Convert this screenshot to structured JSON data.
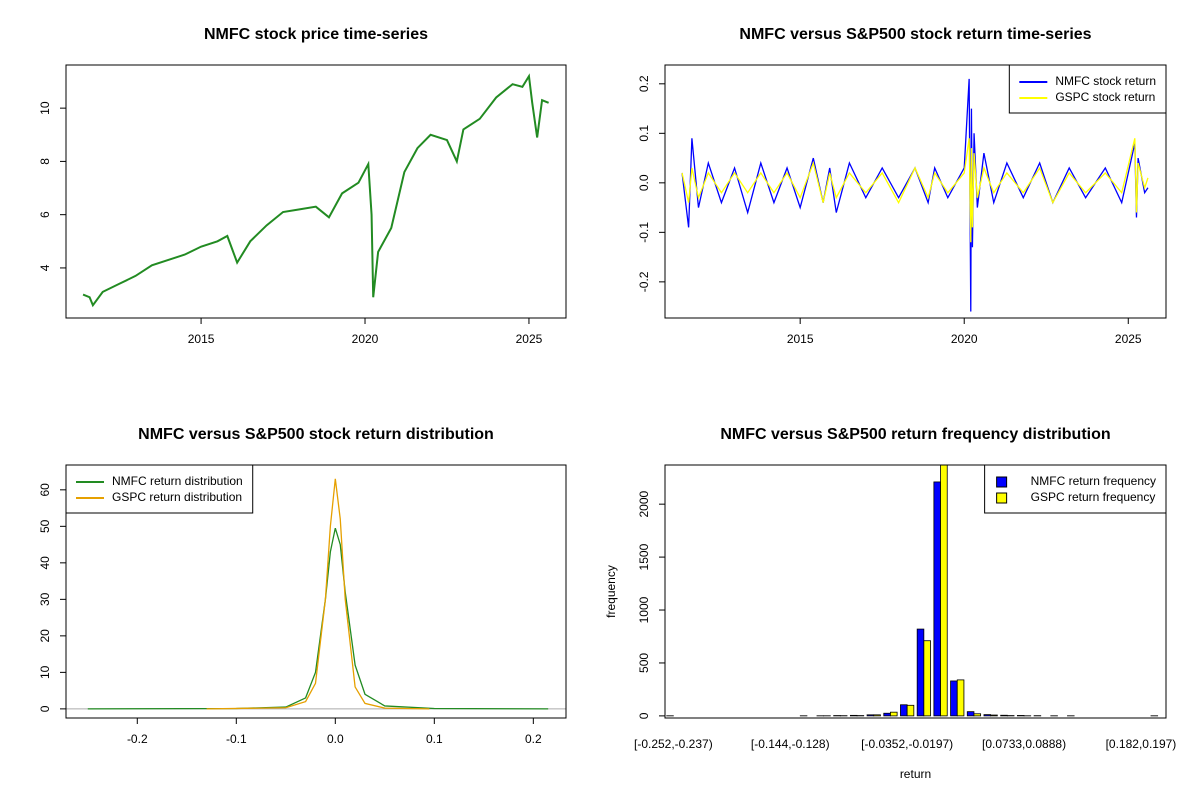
{
  "chart_data": [
    {
      "type": "line",
      "title": "NMFC stock price time-series",
      "color": "#228b22",
      "x": [
        2011.4,
        2011.6,
        2011.7,
        2012.0,
        2012.5,
        2013.0,
        2013.5,
        2014.0,
        2014.5,
        2015.0,
        2015.5,
        2015.8,
        2016.1,
        2016.5,
        2017.0,
        2017.5,
        2018.0,
        2018.5,
        2018.9,
        2019.3,
        2019.8,
        2020.1,
        2020.2,
        2020.25,
        2020.4,
        2020.8,
        2021.2,
        2021.6,
        2022.0,
        2022.5,
        2022.8,
        2023.0,
        2023.5,
        2024.0,
        2024.5,
        2024.8,
        2025.0,
        2025.1,
        2025.25,
        2025.4,
        2025.6
      ],
      "values": [
        3.0,
        2.9,
        2.6,
        3.1,
        3.4,
        3.7,
        4.1,
        4.3,
        4.5,
        4.8,
        5.0,
        5.2,
        4.2,
        5.0,
        5.6,
        6.1,
        6.2,
        6.3,
        5.9,
        6.8,
        7.2,
        7.9,
        6.0,
        2.9,
        4.6,
        5.5,
        7.6,
        8.5,
        9.0,
        8.8,
        8.0,
        9.2,
        9.6,
        10.4,
        10.9,
        10.8,
        11.2,
        10.2,
        8.9,
        10.3,
        10.2
      ],
      "xlim": [
        2010.88,
        2026.13
      ],
      "xticks": [
        2015,
        2020,
        2025
      ],
      "ylim": [
        2.12,
        11.62
      ],
      "yticks": [
        4,
        6,
        8,
        10
      ]
    },
    {
      "type": "line",
      "title": "NMFC versus S&P500 stock return time-series",
      "legend": "topright",
      "x": [
        2011.4,
        2011.6,
        2011.7,
        2011.9,
        2012.2,
        2012.6,
        2013.0,
        2013.4,
        2013.8,
        2014.2,
        2014.6,
        2015.0,
        2015.4,
        2015.7,
        2015.9,
        2016.1,
        2016.5,
        2017.0,
        2017.5,
        2018.0,
        2018.5,
        2018.9,
        2019.1,
        2019.5,
        2020.0,
        2020.15,
        2020.2,
        2020.22,
        2020.25,
        2020.3,
        2020.4,
        2020.6,
        2020.9,
        2021.3,
        2021.8,
        2022.3,
        2022.7,
        2023.2,
        2023.7,
        2024.3,
        2024.8,
        2025.2,
        2025.25,
        2025.3,
        2025.5,
        2025.6
      ],
      "series": [
        {
          "name": "NMFC stock return",
          "color": "#0000ff",
          "values": [
            0.02,
            -0.09,
            0.09,
            -0.05,
            0.04,
            -0.04,
            0.03,
            -0.06,
            0.04,
            -0.04,
            0.03,
            -0.05,
            0.05,
            -0.04,
            0.03,
            -0.06,
            0.04,
            -0.03,
            0.03,
            -0.03,
            0.03,
            -0.04,
            0.03,
            -0.03,
            0.03,
            0.21,
            -0.26,
            0.15,
            -0.13,
            0.1,
            -0.05,
            0.06,
            -0.04,
            0.04,
            -0.03,
            0.04,
            -0.04,
            0.03,
            -0.03,
            0.03,
            -0.04,
            0.08,
            -0.07,
            0.05,
            -0.02,
            -0.01
          ]
        },
        {
          "name": "GSPC stock return",
          "color": "#ffff00",
          "values": [
            0.02,
            -0.04,
            0.03,
            -0.03,
            0.02,
            -0.02,
            0.02,
            -0.02,
            0.02,
            -0.02,
            0.02,
            -0.03,
            0.04,
            -0.04,
            0.02,
            -0.03,
            0.02,
            -0.02,
            0.02,
            -0.04,
            0.03,
            -0.03,
            0.02,
            -0.02,
            0.02,
            0.09,
            -0.12,
            0.07,
            -0.09,
            0.06,
            -0.03,
            0.03,
            -0.02,
            0.02,
            -0.02,
            0.03,
            -0.04,
            0.02,
            -0.02,
            0.02,
            -0.02,
            0.09,
            -0.06,
            0.04,
            -0.01,
            0.01
          ]
        }
      ],
      "xlim": [
        2010.88,
        2026.15
      ],
      "xticks": [
        2015,
        2020,
        2025
      ],
      "ylim": [
        -0.273,
        0.238
      ],
      "yticks": [
        -0.2,
        -0.1,
        {
          "value": 0,
          "label": "0.0"
        },
        0.1,
        0.2
      ]
    },
    {
      "type": "line",
      "title": "NMFC versus S&P500 stock return distribution",
      "legend": "topleft",
      "series": [
        {
          "name": "NMFC return distribution",
          "color": "#228b22",
          "x": [
            -0.25,
            -0.1,
            -0.05,
            -0.03,
            -0.02,
            -0.01,
            -0.005,
            0,
            0.005,
            0.01,
            0.02,
            0.03,
            0.05,
            0.1,
            0.215
          ],
          "values": [
            0,
            0.1,
            0.5,
            3,
            10,
            30,
            43,
            49.5,
            45,
            32,
            12,
            4,
            0.8,
            0.1,
            0
          ]
        },
        {
          "name": "GSPC return distribution",
          "color": "#e6a000",
          "x": [
            -0.13,
            -0.05,
            -0.03,
            -0.02,
            -0.01,
            -0.005,
            0,
            0.005,
            0.01,
            0.02,
            0.03,
            0.05,
            0.095
          ],
          "values": [
            0,
            0.3,
            2,
            7,
            30,
            50,
            63,
            52,
            30,
            6,
            1.5,
            0.2,
            0
          ]
        }
      ],
      "xlim": [
        -0.272,
        0.233
      ],
      "xticks": [
        -0.2,
        -0.1,
        {
          "value": 0,
          "label": "0.0"
        },
        0.1,
        0.2
      ],
      "ylim": [
        -2.5,
        66.8
      ],
      "yticks": [
        0,
        10,
        20,
        30,
        40,
        50,
        60
      ]
    },
    {
      "type": "bar",
      "title": "NMFC versus S&P500 return frequency distribution",
      "legend": "topright",
      "xlabel": "return",
      "ylabel": "frequency",
      "categories": [
        "[-0.252,-0.237)",
        null,
        null,
        null,
        null,
        null,
        null,
        "[-0.144,-0.128)",
        null,
        null,
        null,
        null,
        null,
        null,
        "[-0.0352,-0.0197)",
        null,
        null,
        null,
        null,
        null,
        null,
        "[0.0733,0.0888)",
        null,
        null,
        null,
        null,
        null,
        null,
        "[0.182,0.197)",
        null
      ],
      "series": [
        {
          "name": "NMFC return frequency",
          "color": "#0000ff",
          "values": [
            1,
            0,
            0,
            0,
            0,
            0,
            0,
            0,
            1,
            1,
            3,
            5,
            10,
            25,
            105,
            820,
            2210,
            330,
            40,
            12,
            6,
            4,
            2,
            1,
            1,
            0,
            0,
            0,
            0,
            1
          ]
        },
        {
          "name": "GSPC return frequency",
          "color": "#ffff00",
          "values": [
            0,
            0,
            0,
            0,
            0,
            0,
            0,
            0,
            0,
            1,
            2,
            3,
            10,
            35,
            100,
            710,
            2450,
            340,
            20,
            8,
            3,
            1,
            0,
            0,
            0,
            0,
            0,
            0,
            0,
            0
          ]
        }
      ],
      "ylim": [
        -20,
        2370
      ],
      "yticks": [
        0,
        500,
        1000,
        1500,
        2000
      ]
    }
  ]
}
